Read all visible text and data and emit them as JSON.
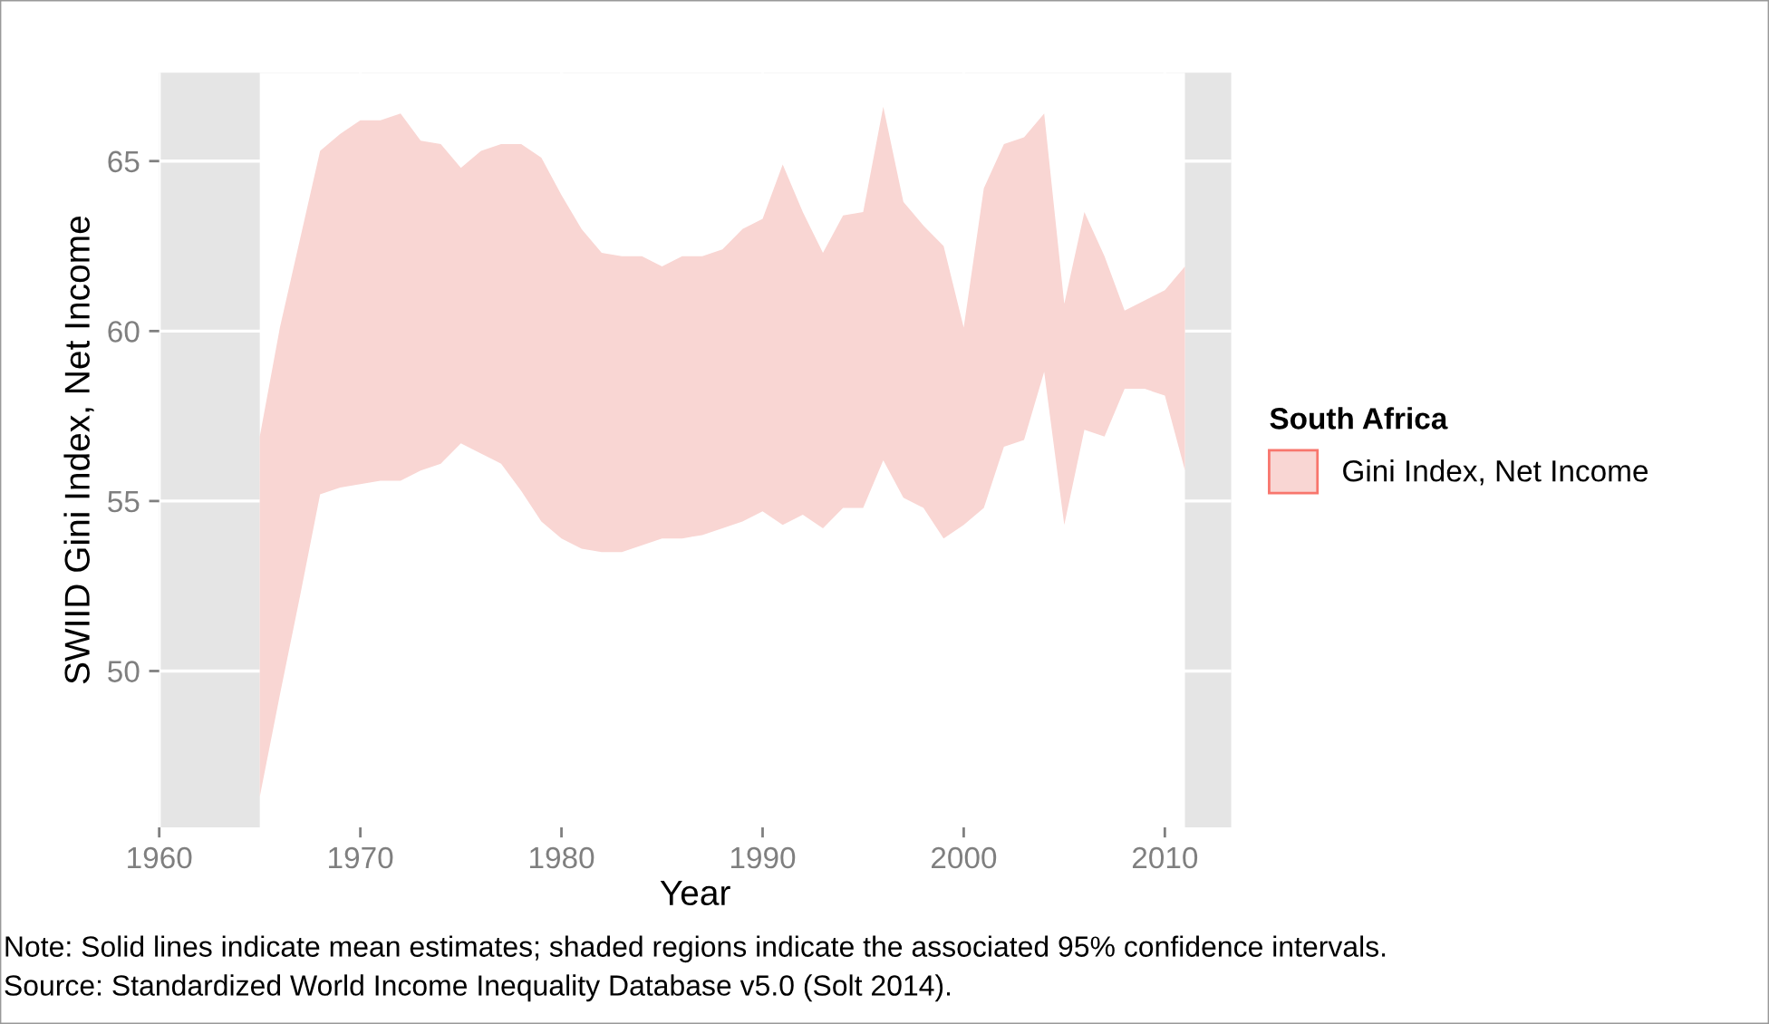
{
  "chart_data": {
    "type": "area",
    "xlabel": "Year",
    "ylabel": "SWIID Gini Index, Net Income",
    "legend_title": "South Africa",
    "x": [
      1965,
      1966,
      1967,
      1968,
      1969,
      1970,
      1971,
      1972,
      1973,
      1974,
      1975,
      1976,
      1977,
      1978,
      1979,
      1980,
      1981,
      1982,
      1983,
      1984,
      1985,
      1986,
      1987,
      1988,
      1989,
      1990,
      1991,
      1992,
      1993,
      1994,
      1995,
      1996,
      1997,
      1998,
      1999,
      2000,
      2001,
      2002,
      2003,
      2004,
      2005,
      2006,
      2007,
      2008,
      2009,
      2010,
      2011
    ],
    "series": [
      {
        "name": "Gini Index, Net Income",
        "color": "#f9d6d3",
        "values": [
          null,
          null,
          null,
          null,
          null,
          null,
          null,
          null,
          null,
          null,
          null,
          null,
          null,
          null,
          null,
          null,
          null,
          null,
          null,
          null,
          null,
          null,
          null,
          null,
          null,
          null,
          null,
          null,
          null,
          null,
          null,
          null,
          null,
          null,
          null,
          null,
          null,
          null,
          null,
          null,
          null,
          null,
          null,
          null,
          null,
          null,
          null
        ],
        "upper": [
          56.9,
          60.1,
          62.7,
          65.3,
          65.8,
          66.2,
          66.2,
          66.4,
          65.6,
          65.5,
          64.8,
          65.3,
          65.5,
          65.5,
          65.1,
          64.0,
          63.0,
          62.3,
          62.2,
          62.2,
          61.9,
          62.2,
          62.2,
          62.4,
          63.0,
          63.3,
          64.9,
          63.5,
          62.3,
          63.4,
          63.5,
          66.6,
          63.8,
          63.1,
          62.5,
          60.1,
          64.2,
          65.5,
          65.7,
          66.4,
          60.8,
          63.5,
          62.2,
          60.6,
          60.9,
          61.2,
          61.9
        ],
        "lower": [
          46.3,
          49.3,
          52.2,
          55.2,
          55.4,
          55.5,
          55.6,
          55.6,
          55.9,
          56.1,
          56.7,
          56.4,
          56.1,
          55.3,
          54.4,
          53.9,
          53.6,
          53.5,
          53.5,
          53.7,
          53.9,
          53.9,
          54.0,
          54.2,
          54.4,
          54.7,
          54.3,
          54.6,
          54.2,
          54.8,
          54.8,
          56.2,
          55.1,
          54.8,
          53.9,
          54.3,
          54.8,
          56.6,
          56.8,
          58.8,
          54.3,
          57.1,
          56.9,
          58.3,
          58.3,
          58.1,
          55.9
        ]
      }
    ],
    "xlim": [
      1960,
      2013.3
    ],
    "ylim": [
      45.4,
      67.6
    ],
    "xticks": [
      1960,
      1970,
      1980,
      1990,
      2000,
      2010
    ],
    "yticks": [
      50,
      55,
      60,
      65
    ],
    "bands": [
      {
        "axis": "x",
        "from": 1965,
        "to": 2011,
        "color": "#ffffff"
      }
    ],
    "grid": true,
    "legend": "right",
    "annotations": [
      "Note: Solid lines indicate mean estimates; shaded regions indicate the associated 95% confidence intervals.",
      "Source: Standardized World Income Inequality Database v5.0 (Solt 2014)."
    ]
  }
}
